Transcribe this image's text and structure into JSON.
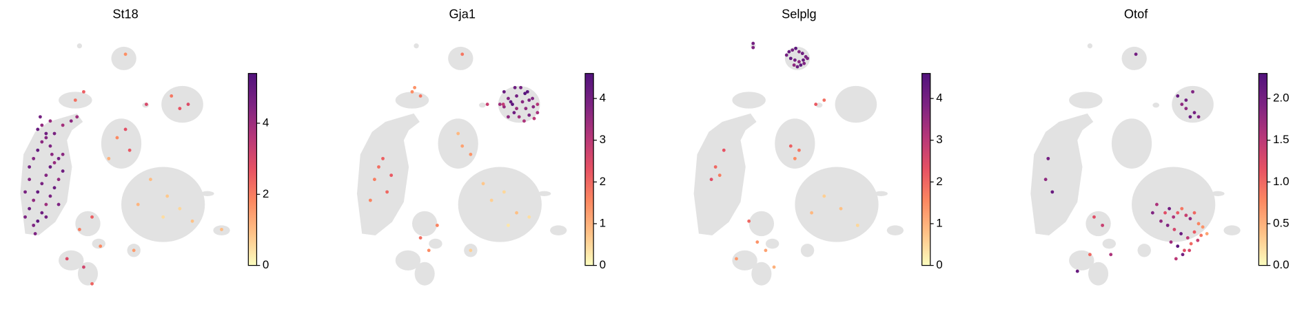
{
  "chart_data": [
    {
      "type": "scatter",
      "title": "St18",
      "x": [
        30,
        35,
        40,
        45,
        50,
        55,
        60,
        65,
        70,
        75,
        40,
        45,
        50,
        55,
        60,
        65,
        70,
        35,
        40,
        45,
        50,
        55,
        60,
        65,
        45,
        50,
        55,
        48,
        60,
        75,
        85,
        92,
        30,
        35,
        55,
        70,
        75,
        62,
        42,
        100,
        90,
        150,
        155,
        140,
        130,
        215,
        225,
        205,
        180,
        200,
        215,
        230,
        165,
        195,
        110,
        95,
        120,
        80,
        100,
        110,
        160,
        150,
        265,
        175
      ],
      "y": [
        260,
        250,
        240,
        230,
        220,
        210,
        200,
        195,
        190,
        185,
        270,
        265,
        255,
        245,
        235,
        225,
        215,
        200,
        190,
        180,
        170,
        160,
        175,
        160,
        155,
        150,
        165,
        140,
        145,
        150,
        145,
        140,
        230,
        215,
        260,
        245,
        205,
        185,
        280,
        110,
        120,
        155,
        180,
        165,
        190,
        130,
        125,
        115,
        215,
        235,
        250,
        265,
        245,
        260,
        260,
        275,
        295,
        310,
        320,
        340,
        300,
        65,
        275,
        125
      ],
      "values": [
        4.5,
        4.8,
        4.2,
        5.0,
        4.6,
        4.4,
        4.9,
        4.1,
        4.7,
        4.3,
        4.5,
        5.1,
        4.8,
        4.0,
        4.6,
        4.9,
        4.2,
        4.7,
        4.4,
        5.0,
        4.3,
        4.8,
        4.5,
        4.6,
        4.9,
        4.2,
        4.4,
        4.7,
        4.1,
        3.9,
        4.3,
        4.0,
        4.6,
        4.4,
        4.7,
        4.5,
        4.8,
        4.3,
        4.5,
        2.5,
        2.2,
        2.8,
        2.6,
        1.8,
        1.2,
        2.7,
        2.9,
        2.1,
        1.0,
        0.8,
        0.6,
        0.9,
        1.1,
        0.5,
        2.5,
        2.0,
        1.8,
        2.9,
        3.1,
        2.4,
        1.5,
        1.7,
        1.0,
        3.0
      ],
      "clim": [
        0,
        5.4
      ],
      "colorbar_ticks": [
        0,
        2,
        4
      ],
      "colormap": [
        "#fcfdbf",
        "#fec287",
        "#fc8961",
        "#e75263",
        "#b73779",
        "#7e2482",
        "#51127c"
      ],
      "background_color": "#e2e2e2"
    },
    {
      "type": "scatter",
      "title": "Gja1",
      "x": [
        200,
        205,
        210,
        215,
        220,
        225,
        230,
        235,
        240,
        205,
        212,
        218,
        224,
        230,
        236,
        208,
        215,
        222,
        228,
        234,
        200,
        240,
        213,
        226,
        195,
        199,
        180,
        90,
        100,
        50,
        55,
        45,
        60,
        40,
        65,
        150,
        145,
        160,
        185,
        200,
        215,
        230,
        175,
        205,
        120,
        100,
        110,
        160,
        150,
        93
      ],
      "y": [
        110,
        118,
        125,
        130,
        105,
        112,
        120,
        128,
        135,
        140,
        135,
        140,
        145,
        138,
        142,
        122,
        115,
        122,
        110,
        118,
        128,
        125,
        105,
        130,
        125,
        125,
        125,
        110,
        115,
        200,
        190,
        215,
        230,
        240,
        210,
        175,
        160,
        185,
        240,
        230,
        255,
        260,
        220,
        270,
        270,
        285,
        300,
        300,
        65,
        105
      ],
      "values": [
        4.2,
        3.8,
        4.4,
        3.5,
        4.0,
        4.5,
        3.9,
        3.7,
        3.3,
        3.6,
        4.1,
        3.4,
        3.2,
        3.9,
        3.0,
        4.3,
        4.0,
        3.7,
        4.4,
        3.8,
        3.5,
        3.1,
        4.1,
        3.6,
        3.4,
        2.9,
        2.8,
        1.5,
        1.8,
        1.9,
        2.1,
        1.7,
        2.0,
        1.6,
        2.2,
        1.2,
        0.9,
        1.4,
        0.6,
        0.5,
        0.8,
        0.4,
        0.7,
        0.3,
        1.6,
        1.9,
        1.5,
        0.6,
        1.8,
        1.4
      ],
      "clim": [
        0,
        4.6
      ],
      "colorbar_ticks": [
        0,
        1,
        2,
        3,
        4
      ],
      "colormap": [
        "#fcfdbf",
        "#fec287",
        "#fc8961",
        "#e75263",
        "#b73779",
        "#7e2482",
        "#51127c"
      ],
      "background_color": "#e2e2e2"
    },
    {
      "type": "scatter",
      "title": "Selplg",
      "x": [
        138,
        142,
        146,
        150,
        154,
        158,
        140,
        145,
        150,
        155,
        160,
        144,
        148,
        152,
        156,
        135,
        95,
        95,
        170,
        180,
        150,
        140,
        145,
        60,
        50,
        55,
        45,
        180,
        200,
        220,
        165,
        100,
        110,
        120,
        90,
        75
      ],
      "y": [
        62,
        60,
        58,
        62,
        64,
        68,
        70,
        72,
        74,
        72,
        70,
        78,
        80,
        78,
        76,
        66,
        52,
        57,
        125,
        120,
        180,
        175,
        190,
        180,
        200,
        210,
        215,
        235,
        250,
        270,
        255,
        290,
        300,
        320,
        265,
        310
      ],
      "values": [
        4.2,
        4.0,
        4.4,
        3.8,
        4.1,
        3.9,
        4.3,
        4.0,
        3.7,
        4.2,
        3.9,
        3.6,
        4.1,
        4.4,
        3.8,
        4.0,
        4.0,
        3.8,
        2.2,
        1.9,
        1.8,
        2.1,
        1.5,
        2.3,
        2.0,
        1.7,
        2.4,
        0.6,
        0.8,
        0.5,
        0.9,
        1.4,
        1.2,
        1.0,
        2.0,
        1.3
      ],
      "clim": [
        0,
        4.6
      ],
      "colorbar_ticks": [
        0,
        1,
        2,
        3,
        4
      ],
      "colormap": [
        "#fcfdbf",
        "#fec287",
        "#fc8961",
        "#e75263",
        "#b73779",
        "#7e2482",
        "#51127c"
      ],
      "background_color": "#e2e2e2"
    },
    {
      "type": "scatter",
      "title": "Otof",
      "x": [
        185,
        190,
        195,
        200,
        205,
        210,
        215,
        220,
        225,
        230,
        188,
        196,
        204,
        212,
        220,
        228,
        192,
        200,
        208,
        216,
        224,
        180,
        235,
        198,
        206,
        214,
        170,
        175,
        210,
        218,
        200,
        210,
        220,
        225,
        215,
        205,
        45,
        42,
        50,
        150,
        100,
        110,
        95,
        120,
        80
      ],
      "y": [
        255,
        250,
        260,
        255,
        250,
        258,
        262,
        255,
        268,
        272,
        270,
        275,
        280,
        285,
        278,
        282,
        290,
        295,
        300,
        292,
        288,
        265,
        280,
        310,
        305,
        300,
        255,
        245,
        120,
        110,
        115,
        130,
        135,
        140,
        140,
        125,
        190,
        215,
        230,
        65,
        260,
        270,
        305,
        305,
        325
      ],
      "values": [
        1.2,
        2.0,
        1.6,
        1.1,
        0.9,
        1.4,
        1.8,
        1.0,
        0.8,
        0.7,
        1.9,
        1.3,
        2.1,
        1.5,
        1.1,
        0.9,
        1.7,
        2.2,
        1.2,
        1.0,
        1.4,
        1.8,
        0.6,
        1.5,
        2.0,
        1.3,
        1.9,
        1.6,
        2.0,
        1.9,
        2.1,
        1.8,
        2.0,
        1.9,
        2.1,
        1.8,
        2.0,
        1.8,
        2.1,
        2.0,
        1.2,
        1.4,
        1.0,
        1.6,
        2.1
      ],
      "clim": [
        0,
        2.3
      ],
      "colorbar_ticks": [
        {
          "value": 0,
          "label": "0.0"
        },
        0.5,
        {
          "value": 1,
          "label": "1.0"
        },
        1.5,
        {
          "value": 2,
          "label": "2.0"
        }
      ],
      "colormap": [
        "#fcfdbf",
        "#fec287",
        "#fc8961",
        "#e75263",
        "#b73779",
        "#7e2482",
        "#51127c"
      ],
      "background_color": "#e2e2e2"
    }
  ]
}
